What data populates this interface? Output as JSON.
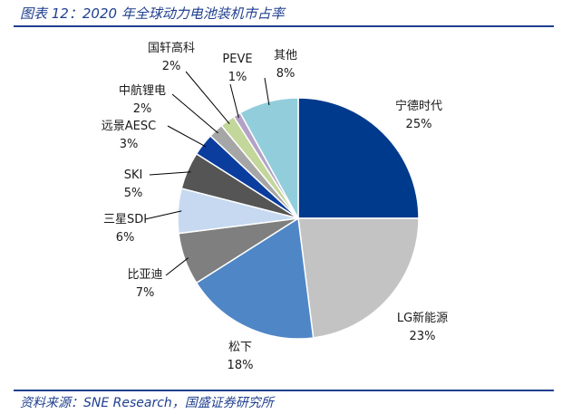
{
  "header": {
    "title": "图表 12：2020 年全球动力电池装机市占率"
  },
  "footer": {
    "source": "资料来源：SNE Research，国盛证券研究所"
  },
  "colors": {
    "accent": "#1f3f8f"
  },
  "chart_data": {
    "type": "pie",
    "title": "图表 12：2020 年全球动力电池装机市占率",
    "start": "12 o'clock",
    "direction": "clockwise",
    "slices": [
      {
        "name": "宁德时代",
        "value": 25,
        "label": "25%",
        "color": "#003a8c"
      },
      {
        "name": "LG新能源",
        "value": 23,
        "label": "23%",
        "color": "#c3c3c3"
      },
      {
        "name": "松下",
        "value": 18,
        "label": "18%",
        "color": "#4f86c6"
      },
      {
        "name": "比亚迪",
        "value": 7,
        "label": "7%",
        "color": "#7f7f7f"
      },
      {
        "name": "三星SDI",
        "value": 6,
        "label": "6%",
        "color": "#c6d9f1"
      },
      {
        "name": "SKI",
        "value": 5,
        "label": "5%",
        "color": "#555555"
      },
      {
        "name": "远景AESC",
        "value": 3,
        "label": "3%",
        "color": "#0b3d9e"
      },
      {
        "name": "中航锂电",
        "value": 2,
        "label": "2%",
        "color": "#a6a6a6"
      },
      {
        "name": "国轩高科",
        "value": 2,
        "label": "2%",
        "color": "#c4d79b"
      },
      {
        "name": "PEVE",
        "value": 1,
        "label": "1%",
        "color": "#b3a2c7"
      },
      {
        "name": "其他",
        "value": 8,
        "label": "8%",
        "color": "#92cddc"
      }
    ]
  }
}
